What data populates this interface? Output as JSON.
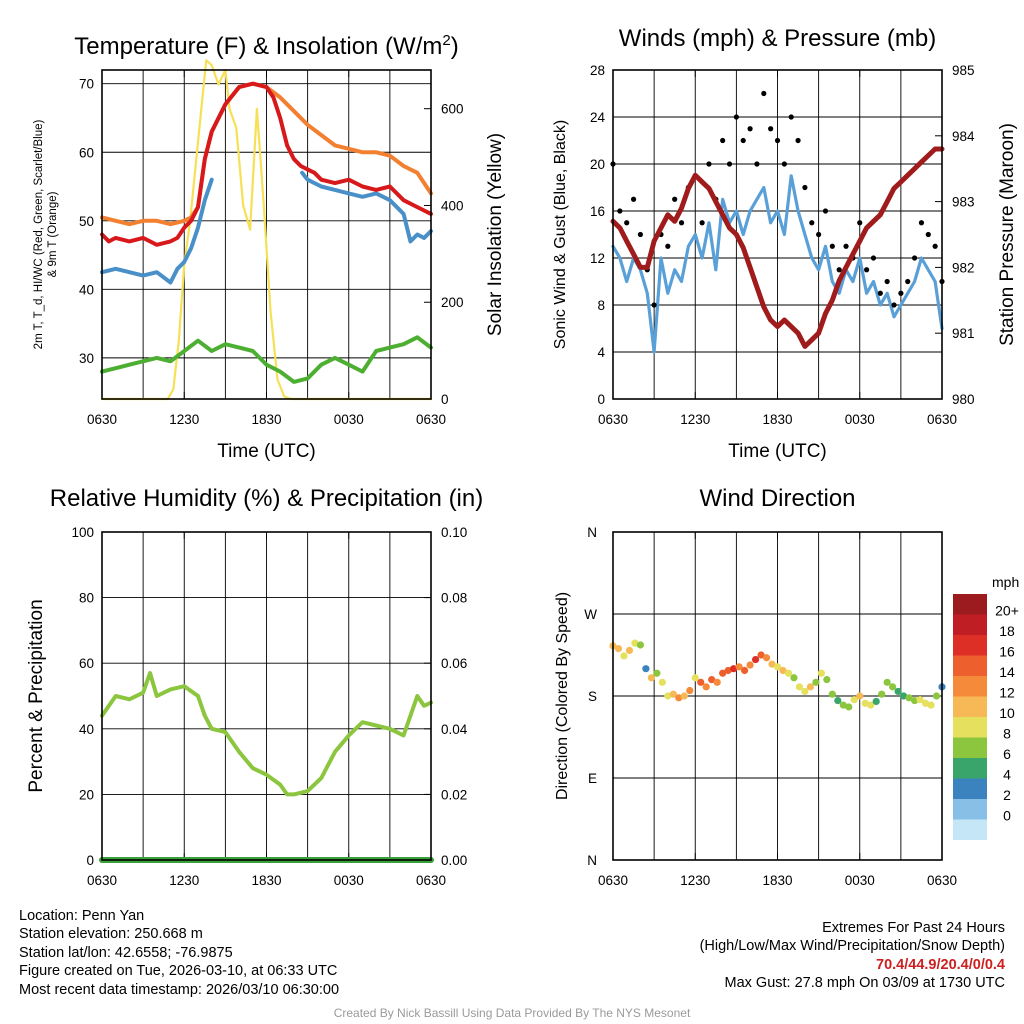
{
  "colors": {
    "red": "#d7191c",
    "green": "#4daf32",
    "scarlet_blue": "#4a90c8",
    "orange": "#f28030",
    "yellow": "#f5e056",
    "sonic_blue": "#5aa0d8",
    "gust_black": "#000000",
    "maroon": "#a01c1c",
    "rh_green": "#8cc63f",
    "precip_green": "#3aa13a"
  },
  "chart_data": [
    {
      "id": "temperature",
      "type": "line",
      "title": "Temperature (F) & Insolation (W/m²)",
      "title_main": "Temperature (F) & Insolation (W/m",
      "title_sup": "2",
      "title_end": ")",
      "xlabel": "Time (UTC)",
      "ylabel": [
        "2m T, T_d, HI/WC (Red, Green, Scarlet/Blue)",
        "& 9m T (Orange)"
      ],
      "y2label": "Solar Insolation (Yellow)",
      "x_ticks": [
        "0630",
        "1230",
        "1830",
        "0030",
        "0630"
      ],
      "xlim": [
        0,
        24
      ],
      "ylim": [
        24,
        72
      ],
      "y_ticks": [
        30,
        40,
        50,
        60,
        70
      ],
      "y2lim": [
        0,
        680
      ],
      "y2_ticks": [
        0,
        200,
        400,
        600
      ],
      "series": [
        {
          "name": "Solar Insolation",
          "axis": "right",
          "color_key": "yellow",
          "x": [
            0,
            4.8,
            5.2,
            5.6,
            6.0,
            6.4,
            7.6,
            8.0,
            8.5,
            9.0,
            9.3,
            9.8,
            10.3,
            10.8,
            11.3,
            11.8,
            12.3,
            12.8,
            13.3,
            13.8,
            14.3,
            14.8,
            15.2,
            15.6,
            16.0,
            24
          ],
          "values": [
            0,
            0,
            20,
            120,
            280,
            360,
            700,
            690,
            650,
            680,
            600,
            560,
            400,
            350,
            600,
            400,
            180,
            40,
            5,
            0,
            0,
            0,
            0,
            0,
            0,
            0
          ]
        },
        {
          "name": "2m T (Red)",
          "axis": "left",
          "color_key": "red",
          "x": [
            0,
            0.5,
            1,
            2,
            3,
            4,
            5,
            5.5,
            6,
            6.5,
            7,
            7.5,
            8,
            9,
            10,
            11,
            12,
            12.5,
            13,
            13.5,
            14,
            14.5,
            15,
            15.5,
            16,
            17,
            18,
            19,
            20,
            21,
            22,
            23,
            23.5,
            24
          ],
          "values": [
            48,
            47,
            47.5,
            47,
            47.5,
            46.5,
            47,
            47.5,
            49,
            50,
            52,
            59,
            63,
            67,
            69.5,
            70,
            69.5,
            68,
            65,
            61,
            59,
            58,
            57.5,
            57,
            56,
            55.5,
            56,
            55,
            54.5,
            55,
            53,
            52,
            51.5,
            51
          ]
        },
        {
          "name": "9m T (Orange)",
          "axis": "left",
          "color_key": "orange",
          "x": [
            0,
            1,
            2,
            3,
            4,
            5,
            6,
            6.5,
            7,
            7.5,
            8,
            9,
            10,
            11,
            12,
            13,
            14,
            15,
            16,
            17,
            18,
            19,
            20,
            21,
            22,
            23,
            24
          ],
          "values": [
            50.5,
            50,
            49.5,
            50,
            50,
            49.5,
            50,
            50.5,
            52,
            59,
            63,
            67,
            69.5,
            70,
            69.5,
            68,
            66,
            64,
            62.5,
            61,
            60.5,
            60,
            60,
            59.5,
            58,
            57,
            54
          ]
        },
        {
          "name": "T_d (Green)",
          "axis": "left",
          "color_key": "green",
          "x": [
            0,
            1,
            2,
            3,
            4,
            5,
            6,
            7,
            8,
            9,
            10,
            11,
            12,
            13,
            14,
            15,
            16,
            17,
            18,
            19,
            20,
            21,
            22,
            23,
            24
          ],
          "values": [
            28,
            28.5,
            29,
            29.5,
            30,
            29.5,
            31,
            32.5,
            31,
            32,
            31.5,
            31,
            29,
            28,
            26.5,
            27,
            29,
            30,
            29,
            28,
            31,
            31.5,
            32,
            33,
            31.5
          ]
        },
        {
          "name": "HI/WC (Scarlet/Blue)",
          "axis": "left",
          "color_key": "scarlet_blue",
          "x": [
            0,
            1,
            2,
            3,
            4,
            5,
            5.5,
            6,
            6.5,
            7,
            7.5,
            8,
            14.3,
            14.6,
            15,
            16,
            17,
            18,
            19,
            20,
            21,
            22,
            22.5,
            23,
            23.5,
            24
          ],
          "values": [
            42.5,
            43,
            42.5,
            42,
            42.5,
            41,
            43,
            44,
            46,
            49,
            53,
            56,
            null,
            57,
            56,
            55,
            54.5,
            54,
            53.5,
            54,
            53,
            51,
            47,
            48,
            47.5,
            48.5
          ]
        }
      ]
    },
    {
      "id": "winds",
      "type": "line",
      "title": "Winds (mph) & Pressure (mb)",
      "xlabel": "Time (UTC)",
      "ylabel": "Sonic Wind & Gust (Blue, Black)",
      "y2label": "Station Pressure (Maroon)",
      "x_ticks": [
        "0630",
        "1230",
        "1830",
        "0030",
        "0630"
      ],
      "xlim": [
        0,
        24
      ],
      "ylim": [
        0,
        28
      ],
      "y_ticks": [
        0,
        4,
        8,
        12,
        16,
        20,
        24,
        28
      ],
      "y2lim": [
        980,
        985
      ],
      "y2_ticks": [
        980,
        981,
        982,
        983,
        984,
        985
      ],
      "series": [
        {
          "name": "Sonic Wind",
          "axis": "left",
          "color_key": "sonic_blue",
          "x": [
            0,
            0.5,
            1,
            1.5,
            2,
            2.5,
            3,
            3.5,
            4,
            4.5,
            5,
            5.5,
            6,
            6.5,
            7,
            7.5,
            8,
            8.5,
            9,
            9.5,
            10,
            10.5,
            11,
            11.5,
            12,
            12.5,
            13,
            13.5,
            14,
            14.5,
            15,
            15.5,
            16,
            16.5,
            17,
            17.5,
            18,
            18.5,
            19,
            19.5,
            20,
            20.5,
            21,
            21.5,
            22,
            22.5,
            23,
            23.5,
            24
          ],
          "values": [
            13,
            12,
            10,
            12,
            11,
            9,
            4,
            12,
            9,
            11,
            10,
            13,
            14,
            12,
            15,
            11,
            17,
            15,
            16,
            14,
            16,
            17,
            18,
            15,
            16,
            14,
            19,
            16,
            14,
            12,
            11,
            13,
            10,
            9,
            11,
            10,
            12,
            9,
            10,
            8,
            9,
            7,
            8,
            9,
            10,
            12,
            11,
            10,
            6
          ]
        },
        {
          "name": "Gust",
          "axis": "left",
          "color_key": "gust_black",
          "x": [
            0,
            0.5,
            1,
            1.5,
            2,
            2.5,
            3,
            3.5,
            4,
            4.5,
            5,
            5.5,
            6,
            6.5,
            7,
            7.5,
            8,
            8.5,
            9,
            9.5,
            10,
            10.5,
            11,
            11.5,
            12,
            12.5,
            13,
            13.5,
            14,
            14.5,
            15,
            15.5,
            16,
            16.5,
            17,
            17.5,
            18,
            18.5,
            19,
            19.5,
            20,
            20.5,
            21,
            21.5,
            22,
            22.5,
            23,
            23.5,
            24
          ],
          "values": [
            20,
            16,
            15,
            17,
            14,
            11,
            8,
            14,
            13,
            17,
            15,
            18,
            19,
            15,
            20,
            17,
            22,
            20,
            24,
            22,
            23,
            20,
            26,
            23,
            22,
            20,
            24,
            22,
            18,
            15,
            14,
            16,
            13,
            11,
            13,
            12,
            15,
            11,
            12,
            9,
            10,
            8,
            9,
            10,
            12,
            15,
            14,
            13,
            10
          ]
        },
        {
          "name": "Station Pressure",
          "axis": "right",
          "color_key": "maroon",
          "x": [
            0,
            0.5,
            1,
            1.5,
            2,
            2.5,
            3,
            3.5,
            4,
            4.5,
            5,
            5.5,
            6,
            6.5,
            7,
            7.5,
            8,
            8.5,
            9,
            9.5,
            10,
            10.5,
            11,
            11.5,
            12,
            12.5,
            13,
            13.5,
            14,
            14.5,
            15,
            15.5,
            16,
            16.5,
            17,
            17.5,
            18,
            18.5,
            19,
            19.5,
            20,
            20.5,
            21,
            21.5,
            22,
            22.5,
            23,
            23.5,
            24
          ],
          "values": [
            982.7,
            982.6,
            982.4,
            982.2,
            982.0,
            982.0,
            982.4,
            982.6,
            982.8,
            982.7,
            982.9,
            983.2,
            983.4,
            983.3,
            983.2,
            983.0,
            982.8,
            982.6,
            982.5,
            982.3,
            982.0,
            981.7,
            981.4,
            981.2,
            981.1,
            981.2,
            981.1,
            981.0,
            980.8,
            980.9,
            981.0,
            981.3,
            981.5,
            981.8,
            982.0,
            982.2,
            982.4,
            982.6,
            982.7,
            982.8,
            983.0,
            983.2,
            983.3,
            983.4,
            983.5,
            983.6,
            983.7,
            983.8,
            983.8
          ]
        }
      ]
    },
    {
      "id": "humidity",
      "type": "line",
      "title": "Relative Humidity (%) & Precipitation (in)",
      "xlabel": "",
      "ylabel": "Percent & Precipitation",
      "x_ticks": [
        "0630",
        "1230",
        "1830",
        "0030",
        "0630"
      ],
      "xlim": [
        0,
        24
      ],
      "ylim": [
        0,
        100
      ],
      "y_ticks": [
        0,
        20,
        40,
        60,
        80,
        100
      ],
      "y2lim": [
        0,
        0.1
      ],
      "y2_ticks": [
        "0.00",
        "0.02",
        "0.04",
        "0.06",
        "0.08",
        "0.10"
      ],
      "series": [
        {
          "name": "Relative Humidity",
          "axis": "left",
          "color_key": "rh_green",
          "x": [
            0,
            1,
            2,
            3,
            3.5,
            4,
            5,
            6,
            7,
            7.5,
            8,
            9,
            10,
            11,
            12,
            13,
            13.5,
            14,
            15,
            16,
            17,
            18,
            19,
            20,
            21,
            22,
            23,
            23.5,
            24
          ],
          "values": [
            44,
            50,
            49,
            51,
            57,
            50,
            52,
            53,
            50,
            44,
            40,
            39,
            33,
            28,
            26,
            23,
            20,
            20,
            21,
            25,
            33,
            38,
            42,
            41,
            40,
            38,
            50,
            47,
            48
          ]
        },
        {
          "name": "Precipitation",
          "axis": "right",
          "color_key": "precip_green",
          "x": [
            0,
            24
          ],
          "values": [
            0,
            0
          ]
        }
      ]
    },
    {
      "id": "direction",
      "type": "scatter",
      "title": "Wind Direction",
      "xlabel": "",
      "ylabel": "Direction (Colored By Speed)",
      "x_ticks": [
        "0630",
        "1230",
        "1830",
        "0030",
        "0630"
      ],
      "xlim": [
        0,
        24
      ],
      "ylim": [
        0,
        360
      ],
      "y_ticks": [
        "N",
        "E",
        "S",
        "W",
        "N"
      ],
      "colorbar": {
        "title": "mph",
        "labels": [
          "20+",
          "18",
          "16",
          "14",
          "12",
          "10",
          "8",
          "6",
          "4",
          "2",
          "0"
        ],
        "colors": [
          "#9b1b1e",
          "#bf1f24",
          "#dd2f26",
          "#ee5f2e",
          "#f58b3a",
          "#f7b955",
          "#e5e05e",
          "#8cc63f",
          "#3aa56a",
          "#3a83bf",
          "#87bfe6",
          "#c5e6f6"
        ]
      },
      "x": [
        0,
        0.4,
        0.8,
        1.2,
        1.6,
        2,
        2.4,
        2.8,
        3.2,
        3.6,
        4,
        4.4,
        4.8,
        5.2,
        5.6,
        6,
        6.4,
        6.8,
        7.2,
        7.6,
        8,
        8.4,
        8.8,
        9.2,
        9.6,
        10,
        10.4,
        10.8,
        11.2,
        11.6,
        12,
        12.4,
        12.8,
        13.2,
        13.6,
        14,
        14.4,
        14.8,
        15.2,
        15.6,
        16,
        16.4,
        16.8,
        17.2,
        17.6,
        18,
        18.4,
        18.8,
        19.2,
        19.6,
        20,
        20.4,
        20.8,
        21.2,
        21.6,
        22,
        22.4,
        22.8,
        23.2,
        23.6,
        24
      ],
      "values": [
        235,
        232,
        224,
        230,
        238,
        236,
        210,
        200,
        205,
        195,
        180,
        182,
        178,
        180,
        186,
        200,
        195,
        190,
        198,
        195,
        205,
        208,
        210,
        212,
        208,
        214,
        220,
        225,
        222,
        215,
        212,
        208,
        205,
        200,
        190,
        185,
        190,
        195,
        205,
        198,
        182,
        175,
        170,
        168,
        176,
        180,
        172,
        170,
        174,
        182,
        195,
        190,
        185,
        180,
        178,
        175,
        176,
        172,
        170,
        180,
        190
      ],
      "speeds": [
        13,
        12,
        10,
        12,
        11,
        9,
        4,
        12,
        9,
        11,
        10,
        13,
        14,
        12,
        15,
        11,
        17,
        15,
        16,
        14,
        16,
        17,
        18,
        15,
        16,
        14,
        19,
        16,
        14,
        12,
        11,
        13,
        10,
        9,
        11,
        10,
        12,
        9,
        10,
        8,
        9,
        7,
        8,
        9,
        10,
        12,
        11,
        10,
        6,
        8,
        9,
        8,
        7,
        6,
        8,
        9,
        10,
        11,
        10,
        9,
        5
      ]
    }
  ],
  "footer": {
    "location": "Location: Penn Yan",
    "elevation": "Station elevation: 250.668 m",
    "latlon": "Station lat/lon: 42.6558; -76.9875",
    "created": "Figure created on Tue, 2026-03-10, at 06:33 UTC",
    "recent": "Most recent data timestamp: 2026/03/10 06:30:00",
    "extremes_title": "Extremes For Past 24 Hours",
    "extremes_sub": "(High/Low/Max Wind/Precipitation/Snow Depth)",
    "extremes_values": "70.4/44.9/20.4/0/0.4",
    "max_gust": "Max Gust: 27.8 mph On 03/09 at 1730 UTC",
    "credit": "Created By Nick Bassill Using Data Provided By The NYS Mesonet"
  }
}
